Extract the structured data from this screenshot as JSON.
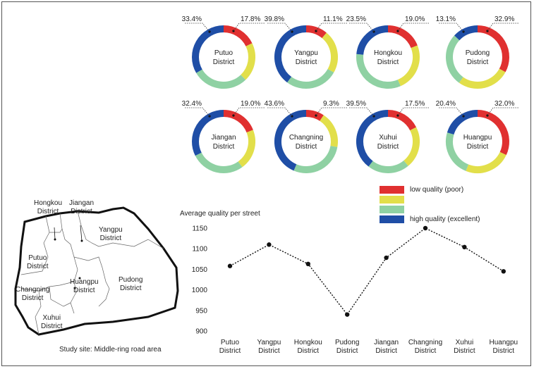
{
  "colors": {
    "low": "#e03030",
    "medium_low": "#e2df4a",
    "medium_high": "#8fd1a3",
    "high": "#1f4ea6"
  },
  "donuts": [
    {
      "name": "Putuo",
      "suffix": "District",
      "left_label": "33.4%",
      "right_label": "17.8%",
      "shares": [
        0.178,
        0.2,
        0.288,
        0.334
      ]
    },
    {
      "name": "Yangpu",
      "suffix": "District",
      "left_label": "39.8%",
      "right_label": "11.1%",
      "shares": [
        0.111,
        0.22,
        0.271,
        0.398
      ]
    },
    {
      "name": "Hongkou",
      "suffix": "District",
      "left_label": "23.5%",
      "right_label": "19.0%",
      "shares": [
        0.19,
        0.245,
        0.33,
        0.235
      ]
    },
    {
      "name": "Pudong",
      "suffix": "District",
      "left_label": "13.1%",
      "right_label": "32.9%",
      "shares": [
        0.329,
        0.27,
        0.27,
        0.131
      ]
    },
    {
      "name": "Jiangan",
      "suffix": "District",
      "left_label": "32.4%",
      "right_label": "19.0%",
      "shares": [
        0.19,
        0.21,
        0.276,
        0.324
      ]
    },
    {
      "name": "Changning",
      "suffix": "District",
      "left_label": "43.6%",
      "right_label": "9.3%",
      "shares": [
        0.093,
        0.185,
        0.286,
        0.436
      ]
    },
    {
      "name": "Xuhui",
      "suffix": "District",
      "left_label": "39.5%",
      "right_label": "17.5%",
      "shares": [
        0.175,
        0.215,
        0.215,
        0.395
      ]
    },
    {
      "name": "Huangpu",
      "suffix": "District",
      "left_label": "20.4%",
      "right_label": "32.0%",
      "shares": [
        0.32,
        0.24,
        0.236,
        0.204
      ]
    }
  ],
  "legend": [
    {
      "label": "low quality (poor)",
      "color_key": "low"
    },
    {
      "label": "",
      "color_key": "medium_low"
    },
    {
      "label": "",
      "color_key": "medium_high"
    },
    {
      "label": "high quality (excellent)",
      "color_key": "high"
    }
  ],
  "chart_data": {
    "type": "line",
    "title": "Average quality per street",
    "categories": [
      "Putuo District",
      "Yangpu District",
      "Hongkou District",
      "Pudong District",
      "Jiangan District",
      "Changning District",
      "Xuhui District",
      "Huangpu District"
    ],
    "values": [
      1058,
      1110,
      1063,
      940,
      1078,
      1150,
      1104,
      1045
    ],
    "ylim": [
      900,
      1150
    ],
    "yticks": [
      900,
      950,
      1000,
      1050,
      1100,
      1150
    ],
    "line_style": "dotted",
    "grid": false
  },
  "map": {
    "caption": "Study site: Middle-ring road area",
    "labels": [
      {
        "line1": "Hongkou",
        "line2": "District"
      },
      {
        "line1": "Jiangan",
        "line2": "District"
      },
      {
        "line1": "Yangpu",
        "line2": "District"
      },
      {
        "line1": "Putuo",
        "line2": "District"
      },
      {
        "line1": "Pudong",
        "line2": "District"
      },
      {
        "line1": "Huangpu",
        "line2": "District"
      },
      {
        "line1": "Changning",
        "line2": "District"
      },
      {
        "line1": "Xuhui",
        "line2": "District"
      }
    ]
  }
}
